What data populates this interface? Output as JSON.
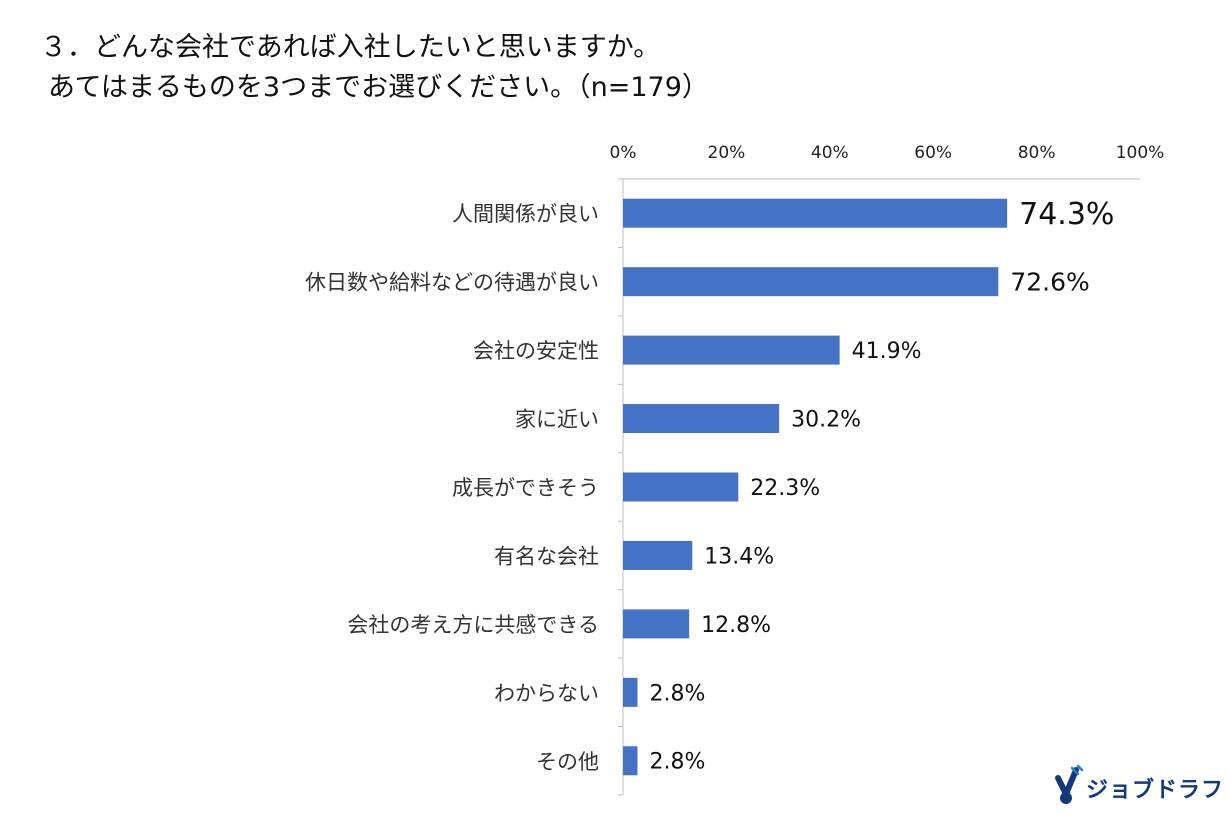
{
  "title": {
    "line1": "３．どんな会社であれば入社したいと思いますか。",
    "line2": "あてはまるものを3つまでお選びください。（n=179）"
  },
  "chart_data": {
    "type": "bar",
    "orientation": "horizontal",
    "categories": [
      "人間関係が良い",
      "休日数や給料などの待遇が良い",
      "会社の安定性",
      "家に近い",
      "成長ができそう",
      "有名な会社",
      "会社の考え方に共感できる",
      "わからない",
      "その他"
    ],
    "values": [
      74.3,
      72.6,
      41.9,
      30.2,
      22.3,
      13.4,
      12.8,
      2.8,
      2.8
    ],
    "value_labels": [
      "74.3%",
      "72.6%",
      "41.9%",
      "30.2%",
      "22.3%",
      "13.4%",
      "12.8%",
      "2.8%",
      "2.8%"
    ],
    "xlim": [
      0,
      100
    ],
    "x_ticks": [
      0,
      20,
      40,
      60,
      80,
      100
    ],
    "x_tick_labels": [
      "0%",
      "20%",
      "40%",
      "60%",
      "80%",
      "100%"
    ],
    "x_axis_position": "top",
    "grid": false,
    "legend": "none",
    "bar_color": "#4472C4"
  },
  "logo": {
    "text": "ジョブドラフト",
    "color": "#123a7a",
    "accent": "#1e7fd6"
  }
}
